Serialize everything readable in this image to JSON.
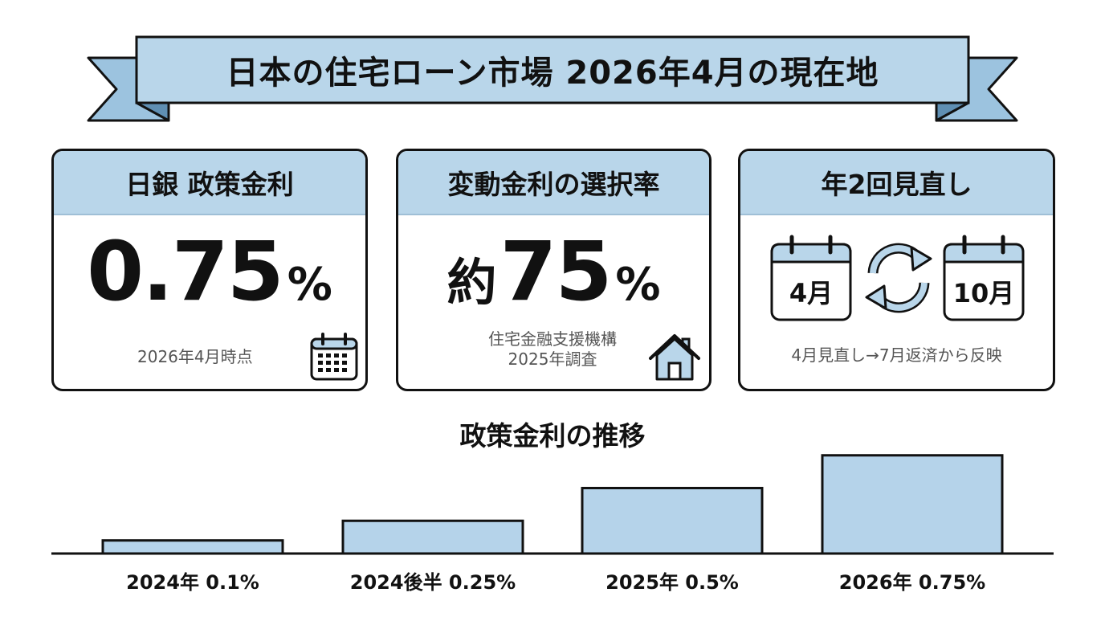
{
  "banner": {
    "title": "日本の住宅ローン市場 2026年4月の現在地"
  },
  "cards": {
    "policy_rate": {
      "header": "日銀 政策金利",
      "value": "0.75",
      "unit": "%",
      "note": "2026年4月時点",
      "icon": "calendar-grid-icon"
    },
    "variable_share": {
      "header": "変動金利の選択率",
      "prefix": "約",
      "value": "75",
      "unit": "%",
      "note_line1": "住宅金融支援機構",
      "note_line2": "2025年調査",
      "icon": "house-icon"
    },
    "review": {
      "header": "年2回見直し",
      "month_a": "4月",
      "month_b": "10月",
      "note": "4月見直し→7月返済から反映",
      "icon": "cycle-arrows-icon"
    }
  },
  "chart_data": {
    "type": "bar",
    "title": "政策金利の推移",
    "categories": [
      "2024年 0.1%",
      "2024後半 0.25%",
      "2025年 0.5%",
      "2026年 0.75%"
    ],
    "values": [
      0.1,
      0.25,
      0.5,
      0.75
    ],
    "unit": "%",
    "grid": false,
    "legend": "none"
  },
  "colors": {
    "accent_fill": "#b9d6ea",
    "bar_fill": "#b5d3ea",
    "outline": "#111111",
    "note_text": "#555555"
  }
}
